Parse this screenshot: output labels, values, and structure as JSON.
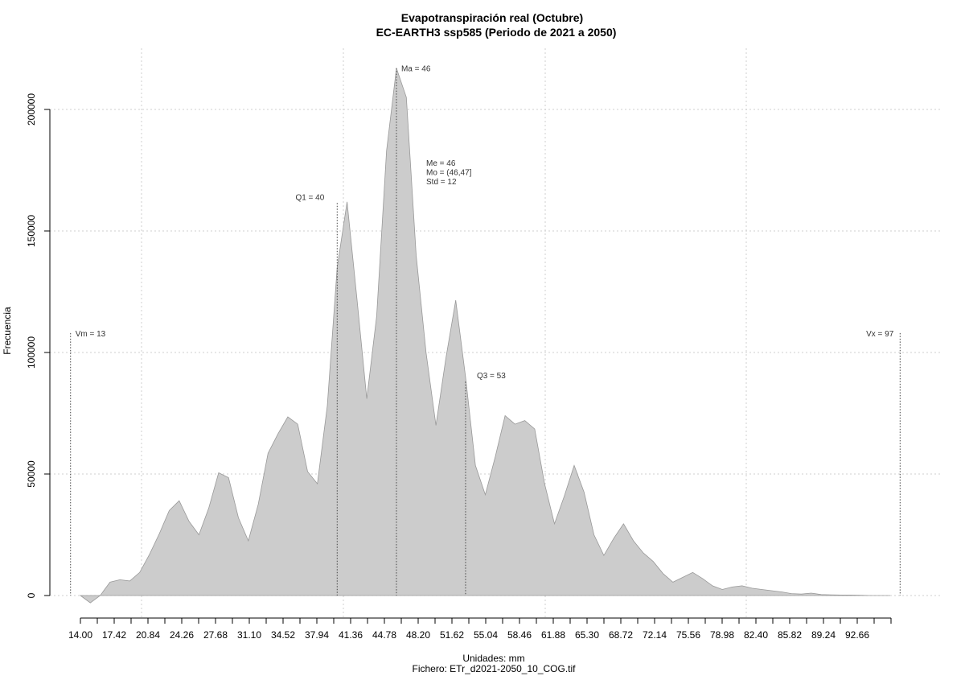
{
  "chart_data": {
    "type": "area",
    "title": "Evapotranspiración real (Octubre)",
    "subtitle": "EC-EARTH3 ssp585 (Periodo de 2021 a 2050)",
    "xlabel": "Unidades: mm",
    "ylabel": "Frecuencia",
    "footer": "Fichero: ETr_d2021-2050_10_COG.tif",
    "x_tick_labels": [
      "14.00",
      "17.42",
      "20.84",
      "24.26",
      "27.68",
      "31.10",
      "34.52",
      "37.94",
      "41.36",
      "44.78",
      "48.20",
      "51.62",
      "55.04",
      "58.46",
      "61.88",
      "65.30",
      "68.72",
      "72.14",
      "75.56",
      "78.98",
      "82.40",
      "85.82",
      "89.24",
      "92.66"
    ],
    "y_ticks": [
      0,
      50000,
      100000,
      150000,
      200000
    ],
    "y_tick_labels": [
      "0",
      "50000",
      "100000",
      "150000",
      "200000"
    ],
    "xlim": [
      14,
      96.08
    ],
    "ylim": [
      -5000,
      222000
    ],
    "grid": true,
    "fill_color": "#cccccc",
    "line_color": "#999999",
    "x": [
      14,
      15,
      16,
      17,
      18,
      19,
      20,
      21,
      22,
      23,
      24,
      25,
      26,
      27,
      28,
      29,
      30,
      31,
      32,
      33,
      34,
      35,
      36,
      37,
      38,
      39,
      40,
      41,
      42,
      43,
      44,
      45,
      46,
      47,
      48,
      49,
      50,
      51,
      52,
      53,
      54,
      55,
      56,
      57,
      58,
      59,
      60,
      61,
      62,
      63,
      64,
      65,
      66,
      67,
      68,
      69,
      70,
      71,
      72,
      73,
      74,
      75,
      76,
      77,
      78,
      79,
      80,
      81,
      82,
      83,
      84,
      85,
      86,
      87,
      88,
      89,
      90,
      91,
      92,
      93,
      94,
      95,
      96
    ],
    "values": [
      0,
      -3000,
      0,
      5500,
      6500,
      6000,
      9500,
      17000,
      25500,
      35000,
      39000,
      30500,
      25000,
      36000,
      50500,
      48500,
      32000,
      22500,
      37500,
      58500,
      66500,
      73500,
      70500,
      51000,
      46000,
      78000,
      135000,
      162000,
      122000,
      81000,
      115000,
      183000,
      217000,
      205000,
      140000,
      100000,
      70000,
      97500,
      121500,
      90000,
      53500,
      41500,
      57000,
      74000,
      70500,
      72000,
      68500,
      46000,
      29500,
      41000,
      53500,
      42500,
      25000,
      16500,
      23500,
      29500,
      22500,
      17500,
      14000,
      9000,
      5500,
      7500,
      9500,
      7000,
      4000,
      2500,
      3500,
      4000,
      3000,
      2500,
      2000,
      1500,
      800,
      600,
      1000,
      400,
      300,
      200,
      200,
      100,
      0,
      0,
      0
    ],
    "markers": [
      {
        "label": "Vm = 13",
        "x": 13,
        "top": 108000
      },
      {
        "label": "Q1 = 40",
        "x": 40,
        "top": 161500
      },
      {
        "label": "Ma = 46",
        "x": 46,
        "top": 217000
      },
      {
        "label": "Q3 = 53",
        "x": 53,
        "top": 88000
      },
      {
        "label": "Vx = 97",
        "x": 97,
        "top": 108000
      }
    ],
    "stats": [
      "Me = 46",
      "Mo = (46,47]",
      "Std = 12"
    ]
  }
}
